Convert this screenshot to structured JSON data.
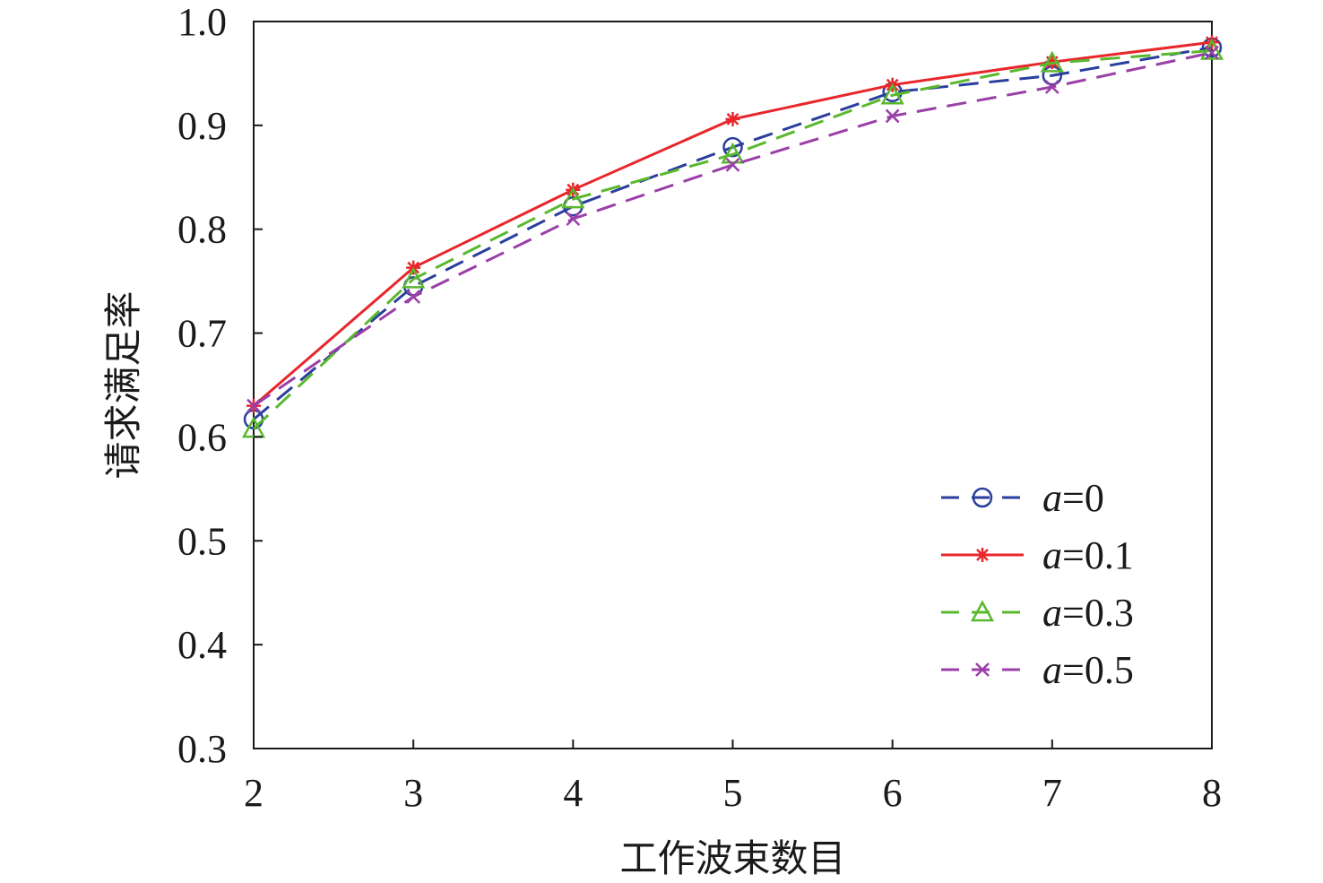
{
  "chart_data": {
    "type": "line",
    "title": "",
    "xlabel": "工作波束数目",
    "ylabel": "请求满足率",
    "x": [
      2,
      3,
      4,
      5,
      6,
      7,
      8
    ],
    "xlim": [
      2,
      8
    ],
    "ylim": [
      0.3,
      1.0
    ],
    "x_ticks": [
      "2",
      "3",
      "4",
      "5",
      "6",
      "7",
      "8"
    ],
    "y_ticks": [
      "0.3",
      "0.4",
      "0.5",
      "0.6",
      "0.7",
      "0.8",
      "0.9",
      "1.0"
    ],
    "grid": false,
    "legend_position": "bottom-right",
    "series": [
      {
        "name": "a=0",
        "legend_var": "a",
        "legend_rest": "=0",
        "color": "#2a3f9d",
        "dash": "dashed",
        "marker": "circle",
        "values": [
          0.617,
          0.745,
          0.822,
          0.879,
          0.932,
          0.948,
          0.975
        ]
      },
      {
        "name": "a=0.1",
        "legend_var": "a",
        "legend_rest": "=0.1",
        "color": "#e8262b",
        "dash": "solid",
        "marker": "asterisk",
        "values": [
          0.63,
          0.763,
          0.838,
          0.906,
          0.939,
          0.961,
          0.98
        ]
      },
      {
        "name": "a=0.3",
        "legend_var": "a",
        "legend_rest": "=0.3",
        "color": "#5ab82e",
        "dash": "dashed",
        "marker": "triangle",
        "values": [
          0.608,
          0.752,
          0.829,
          0.872,
          0.929,
          0.96,
          0.972
        ]
      },
      {
        "name": "a=0.5",
        "legend_var": "a",
        "legend_rest": "=0.5",
        "color": "#9b3fa8",
        "dash": "dashed",
        "marker": "cross",
        "values": [
          0.63,
          0.735,
          0.81,
          0.862,
          0.909,
          0.937,
          0.97
        ]
      }
    ]
  }
}
